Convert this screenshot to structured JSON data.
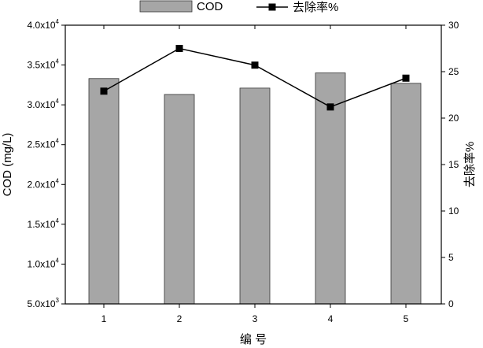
{
  "chart_data": {
    "type": "bar+line",
    "categories": [
      "1",
      "2",
      "3",
      "4",
      "5"
    ],
    "xlabel": "编 号",
    "series": [
      {
        "name": "COD",
        "kind": "bar",
        "axis": "left",
        "values": [
          33300,
          31300,
          32100,
          34000,
          32700
        ],
        "color": "#a6a6a6"
      },
      {
        "name": "去除率%",
        "kind": "line",
        "marker": "square",
        "axis": "right",
        "values": [
          22.9,
          27.5,
          25.7,
          21.2,
          24.3
        ],
        "color": "#000000"
      }
    ],
    "y_left": {
      "label": "COD (mg/L)",
      "range": [
        5000,
        40000
      ],
      "ticks": [
        5000,
        10000,
        15000,
        20000,
        25000,
        30000,
        35000,
        40000
      ],
      "tick_labels": [
        {
          "mant": "5.0x10",
          "exp": "3"
        },
        {
          "mant": "1.0x10",
          "exp": "4"
        },
        {
          "mant": "1.5x10",
          "exp": "4"
        },
        {
          "mant": "2.0x10",
          "exp": "4"
        },
        {
          "mant": "2.5x10",
          "exp": "4"
        },
        {
          "mant": "3.0x10",
          "exp": "4"
        },
        {
          "mant": "3.5x10",
          "exp": "4"
        },
        {
          "mant": "4.0x10",
          "exp": "4"
        }
      ]
    },
    "y_right": {
      "label": "去除率%",
      "range": [
        0,
        30
      ],
      "ticks": [
        0,
        5,
        10,
        15,
        20,
        25,
        30
      ]
    },
    "legend": {
      "position": "top-center",
      "entries": [
        "COD",
        "去除率%"
      ]
    },
    "grid": false
  }
}
